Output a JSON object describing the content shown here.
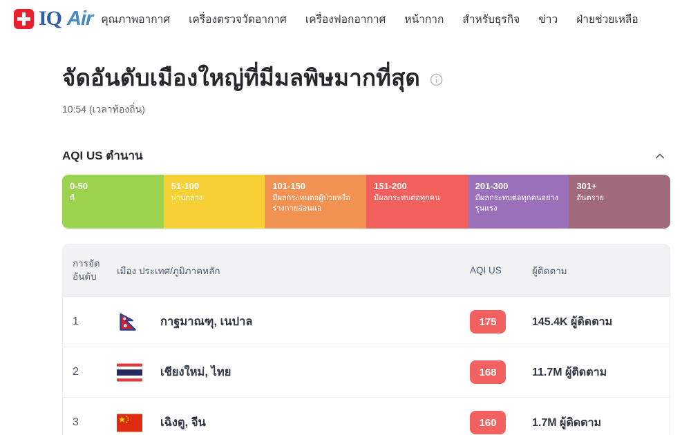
{
  "brand": {
    "iq": "IQ",
    "air": "Air",
    "cross_color": "#e8202e",
    "iq_color": "#2f5ea5",
    "air_color": "#4589c8"
  },
  "nav": {
    "items": [
      {
        "label": "คุณภาพอากาศ"
      },
      {
        "label": "เครื่องตรวจวัดอากาศ"
      },
      {
        "label": "เครื่องฟอกอากาศ"
      },
      {
        "label": "หน้ากาก"
      },
      {
        "label": "สำหรับธุรกิจ"
      },
      {
        "label": "ข่าว"
      },
      {
        "label": "ฝ่ายช่วยเหลือ"
      }
    ]
  },
  "page": {
    "title": "จัดอันดับเมืองใหญ่ที่มีมลพิษมากที่สุด",
    "info_icon": "info-circle",
    "time": "10:54 (เวลาท้องถิ่น)"
  },
  "legend": {
    "title": "AQI US ตำนาน",
    "collapse_icon": "chevron-up",
    "segments": [
      {
        "range": "0-50",
        "label": "ดี",
        "color": "#9bd24e"
      },
      {
        "range": "51-100",
        "label": "ปานกลาง",
        "color": "#f5d037"
      },
      {
        "range": "101-150",
        "label": "มีผลกระทบต่อผู้ป่วยหรือร่างกายอ่อนแอ",
        "color": "#f19253"
      },
      {
        "range": "151-200",
        "label": "มีผลกระทบต่อทุกคน",
        "color": "#f1605d"
      },
      {
        "range": "201-300",
        "label": "มีผลกระทบต่อทุกคนอย่างรุนแรง",
        "color": "#9a70bb"
      },
      {
        "range": "301+",
        "label": "อันตราย",
        "color": "#a06a7b"
      }
    ]
  },
  "table": {
    "headers": {
      "rank": "การจัดอันดับ",
      "city": "เมือง ประเทศ/ภูมิภาคหลัก",
      "aqi": "AQI US",
      "followers": "ผู้ติดตาม"
    },
    "rows": [
      {
        "rank": "1",
        "flag": "nepal-flag",
        "city": "กาฐมาณฑุ, เนปาล",
        "aqi": "175",
        "aqi_color": "#f2605f",
        "followers": "145.4K ผู้ติดตาม"
      },
      {
        "rank": "2",
        "flag": "thailand-flag",
        "city": "เชียงใหม่, ไทย",
        "aqi": "168",
        "aqi_color": "#f2605f",
        "followers": "11.7M ผู้ติดตาม"
      },
      {
        "rank": "3",
        "flag": "china-flag",
        "city": "เฉิงตู, จีน",
        "aqi": "160",
        "aqi_color": "#f2605f",
        "followers": "1.7M ผู้ติดตาม"
      }
    ]
  }
}
